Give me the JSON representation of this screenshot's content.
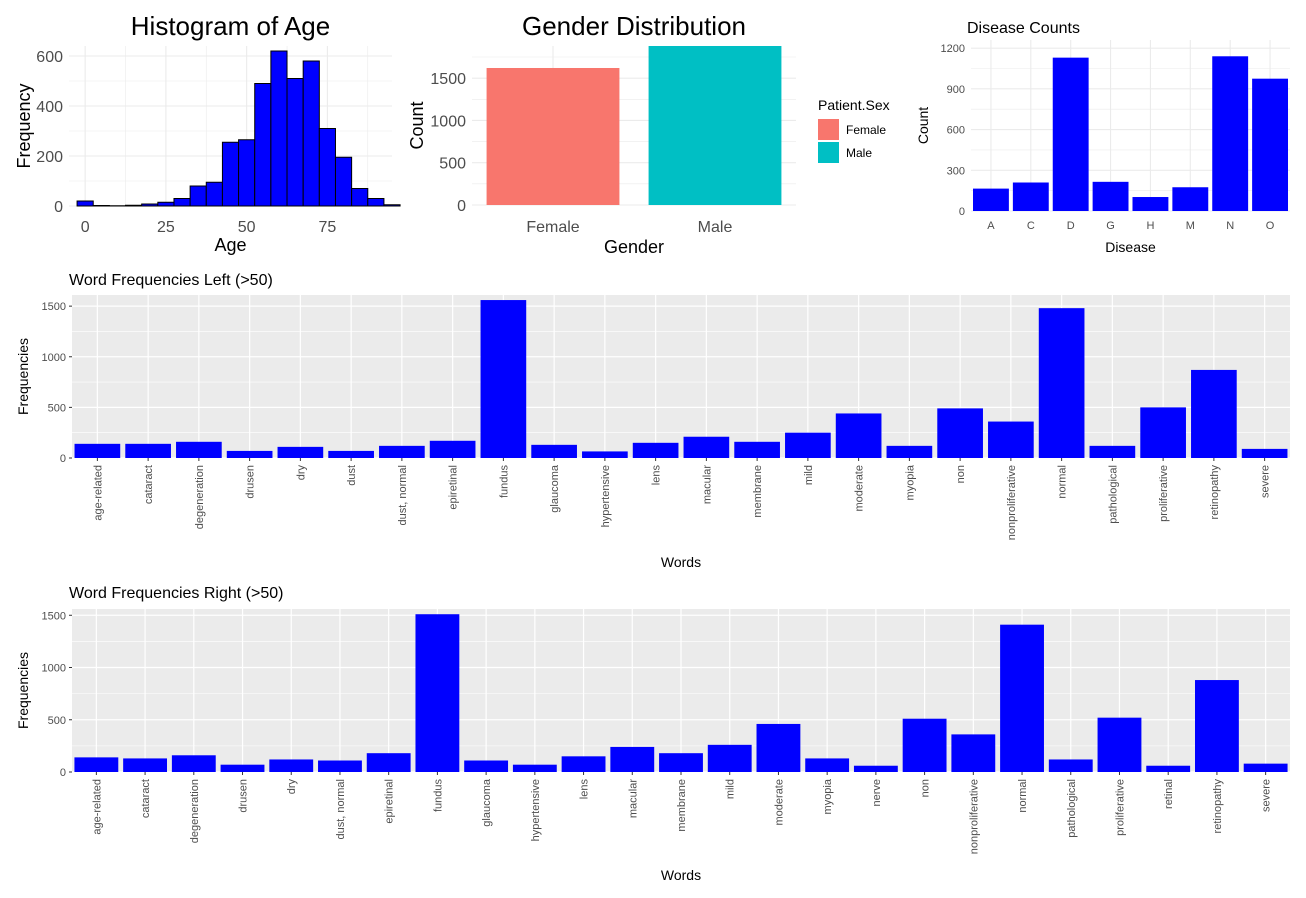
{
  "colors": {
    "bar_blue": "#0000FF",
    "female": "#F8766D",
    "male": "#00BFC4",
    "panel_grey": "#EBEBEB",
    "grid_white": "#FFFFFF",
    "grid_light": "#EBEBEB",
    "tick_text": "#4D4D4D"
  },
  "chart_data": [
    {
      "type": "bar",
      "id": "age_hist",
      "title": "Histogram of Age",
      "xlabel": "Age",
      "ylabel": "Frequency",
      "theme": "minimal",
      "bar_color": "#0000FF",
      "bar_outline": "#000000",
      "xlim": [
        -5,
        95
      ],
      "ylim": [
        0,
        640
      ],
      "xticks": [
        0,
        25,
        50,
        75
      ],
      "yticks": [
        0,
        200,
        400,
        600
      ],
      "bin_width": 5,
      "bins": [
        {
          "x": 0,
          "count": 20
        },
        {
          "x": 5,
          "count": 2
        },
        {
          "x": 10,
          "count": 1
        },
        {
          "x": 15,
          "count": 3
        },
        {
          "x": 20,
          "count": 8
        },
        {
          "x": 25,
          "count": 15
        },
        {
          "x": 30,
          "count": 30
        },
        {
          "x": 35,
          "count": 80
        },
        {
          "x": 40,
          "count": 95
        },
        {
          "x": 45,
          "count": 255
        },
        {
          "x": 50,
          "count": 265
        },
        {
          "x": 55,
          "count": 490
        },
        {
          "x": 60,
          "count": 620
        },
        {
          "x": 65,
          "count": 510
        },
        {
          "x": 70,
          "count": 580
        },
        {
          "x": 75,
          "count": 310
        },
        {
          "x": 80,
          "count": 195
        },
        {
          "x": 85,
          "count": 70
        },
        {
          "x": 90,
          "count": 30
        },
        {
          "x": 95,
          "count": 5
        }
      ]
    },
    {
      "type": "bar",
      "id": "gender",
      "title": "Gender Distribution",
      "xlabel": "Gender",
      "ylabel": "Count",
      "theme": "minimal",
      "categories": [
        "Female",
        "Male"
      ],
      "values": [
        1620,
        1880
      ],
      "bar_colors": [
        "#F8766D",
        "#00BFC4"
      ],
      "ylim": [
        0,
        1880
      ],
      "yticks": [
        0,
        500,
        1000,
        1500
      ],
      "legend": {
        "title": "Patient.Sex",
        "entries": [
          "Female",
          "Male"
        ],
        "colors": [
          "#F8766D",
          "#00BFC4"
        ],
        "placement": "right"
      }
    },
    {
      "type": "bar",
      "id": "disease",
      "title": "Disease Counts",
      "xlabel": "Disease",
      "ylabel": "Count",
      "theme": "minimal",
      "bar_color": "#0000FF",
      "categories": [
        "A",
        "C",
        "D",
        "G",
        "H",
        "M",
        "N",
        "O"
      ],
      "values": [
        165,
        210,
        1130,
        215,
        103,
        175,
        1140,
        975
      ],
      "ylim": [
        0,
        1260
      ],
      "yticks": [
        0,
        300,
        600,
        900,
        1200
      ]
    },
    {
      "type": "bar",
      "id": "words_left",
      "title": "Word Frequencies Left (>50)",
      "xlabel": "Words",
      "ylabel": "Frequencies",
      "theme": "grey",
      "bar_color": "#0000FF",
      "categories": [
        "age-related",
        "cataract",
        "degeneration",
        "drusen",
        "dry",
        "dust",
        "dust,  normal",
        "epiretinal",
        "fundus",
        "glaucoma",
        "hypertensive",
        "lens",
        "macular",
        "membrane",
        "mild",
        "moderate",
        "myopia",
        "non",
        "nonproliferative",
        "normal",
        "pathological",
        "proliferative",
        "retinopathy",
        "severe"
      ],
      "values": [
        140,
        140,
        160,
        70,
        110,
        70,
        120,
        170,
        1560,
        130,
        65,
        150,
        210,
        160,
        250,
        440,
        120,
        490,
        360,
        1480,
        120,
        500,
        870,
        90
      ],
      "ylim": [
        0,
        1610
      ],
      "yticks": [
        0,
        500,
        1000,
        1500
      ]
    },
    {
      "type": "bar",
      "id": "words_right",
      "title": "Word Frequencies Right (>50)",
      "xlabel": "Words",
      "ylabel": "Frequencies",
      "theme": "grey",
      "bar_color": "#0000FF",
      "categories": [
        "age-related",
        "cataract",
        "degeneration",
        "drusen",
        "dry",
        "dust,  normal",
        "epiretinal",
        "fundus",
        "glaucoma",
        "hypertensive",
        "lens",
        "macular",
        "membrane",
        "mild",
        "moderate",
        "myopia",
        "nerve",
        "non",
        "nonproliferative",
        "normal",
        "pathological",
        "proliferative",
        "retinal",
        "retinopathy",
        "severe"
      ],
      "values": [
        140,
        130,
        160,
        70,
        120,
        110,
        180,
        1510,
        110,
        70,
        150,
        240,
        180,
        260,
        460,
        130,
        60,
        510,
        360,
        1410,
        120,
        520,
        60,
        880,
        80
      ],
      "ylim": [
        0,
        1560
      ],
      "yticks": [
        0,
        500,
        1000,
        1500
      ]
    }
  ]
}
